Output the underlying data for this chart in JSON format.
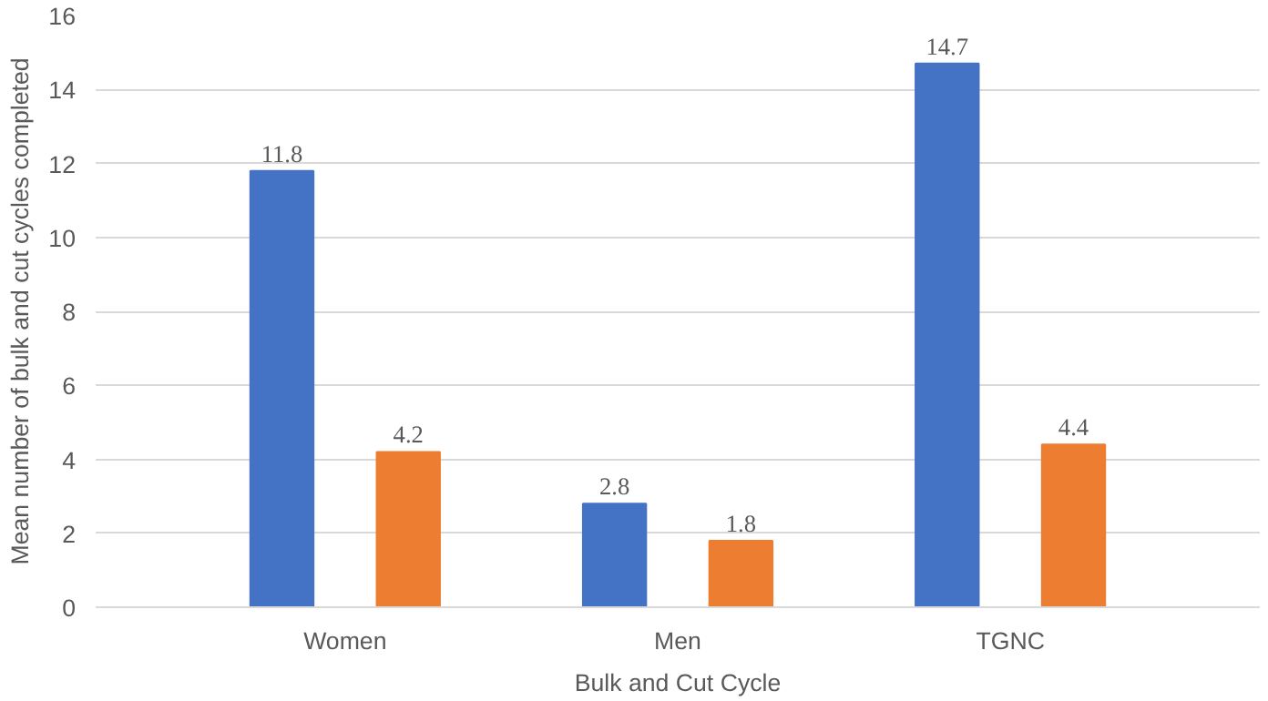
{
  "chart_data": {
    "type": "bar",
    "xlabel": "Bulk and Cut Cycle",
    "ylabel": "Mean number of bulk and cut cycles completed",
    "categories": [
      "Women",
      "Men",
      "TGNC"
    ],
    "series": [
      {
        "color": "#4472c4",
        "values": [
          11.8,
          2.8,
          14.7
        ]
      },
      {
        "color": "#ed7d31",
        "values": [
          4.2,
          1.8,
          4.4
        ]
      }
    ],
    "ylim": [
      0,
      16
    ],
    "yticks": [
      0,
      2,
      4,
      6,
      8,
      10,
      12,
      14,
      16
    ],
    "grid": "y",
    "data_labels": true
  }
}
